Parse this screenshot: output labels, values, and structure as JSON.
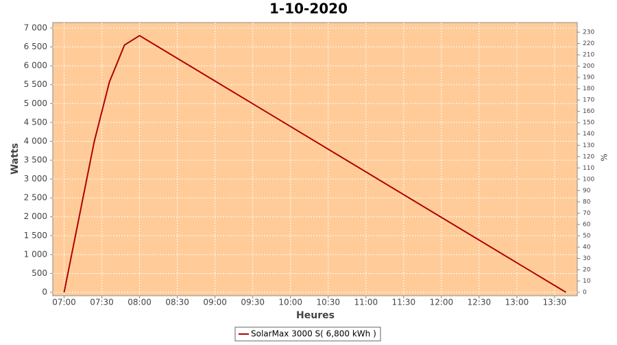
{
  "chart_data": {
    "type": "line",
    "title": "1-10-2020",
    "xlabel": "Heures",
    "ylabel": "Watts",
    "y2label": "%",
    "x": [
      420,
      444,
      456,
      468,
      480,
      819
    ],
    "series": [
      {
        "name": "SolarMax 3000 S( 6,800 kWh )",
        "color": "#b00000",
        "values": [
          0,
          4000,
          5570,
          6550,
          6800,
          0
        ]
      }
    ],
    "xlim": [
      411,
      828
    ],
    "xticks": [
      {
        "value": 420,
        "label": "07:00"
      },
      {
        "value": 450,
        "label": "07:30"
      },
      {
        "value": 480,
        "label": "08:00"
      },
      {
        "value": 510,
        "label": "08:30"
      },
      {
        "value": 540,
        "label": "09:00"
      },
      {
        "value": 570,
        "label": "09:30"
      },
      {
        "value": 600,
        "label": "10:00"
      },
      {
        "value": 630,
        "label": "10:30"
      },
      {
        "value": 660,
        "label": "11:00"
      },
      {
        "value": 690,
        "label": "11:30"
      },
      {
        "value": 720,
        "label": "12:00"
      },
      {
        "value": 750,
        "label": "12:30"
      },
      {
        "value": 780,
        "label": "13:00"
      },
      {
        "value": 810,
        "label": "13:30"
      }
    ],
    "ylim": [
      -90,
      7145
    ],
    "yticks": [
      0,
      500,
      {
        "value": 1000,
        "label": "1 000"
      },
      {
        "value": 1500,
        "label": "1 500"
      },
      {
        "value": 2000,
        "label": "2 000"
      },
      {
        "value": 2500,
        "label": "2 500"
      },
      {
        "value": 3000,
        "label": "3 000"
      },
      {
        "value": 3500,
        "label": "3 500"
      },
      {
        "value": 4000,
        "label": "4 000"
      },
      {
        "value": 4500,
        "label": "4 500"
      },
      {
        "value": 5000,
        "label": "5 000"
      },
      {
        "value": 5500,
        "label": "5 500"
      },
      {
        "value": 6000,
        "label": "6 000"
      },
      {
        "value": 6500,
        "label": "6 500"
      },
      {
        "value": 7000,
        "label": "7 000"
      }
    ],
    "y2lim": [
      -3,
      238.5
    ],
    "y2ticks": [
      0,
      10,
      20,
      30,
      40,
      50,
      60,
      70,
      80,
      90,
      100,
      110,
      120,
      130,
      140,
      150,
      160,
      170,
      180,
      190,
      200,
      210,
      220,
      230
    ],
    "grid": true,
    "background": "#ffcc99",
    "legend": "bottom"
  }
}
